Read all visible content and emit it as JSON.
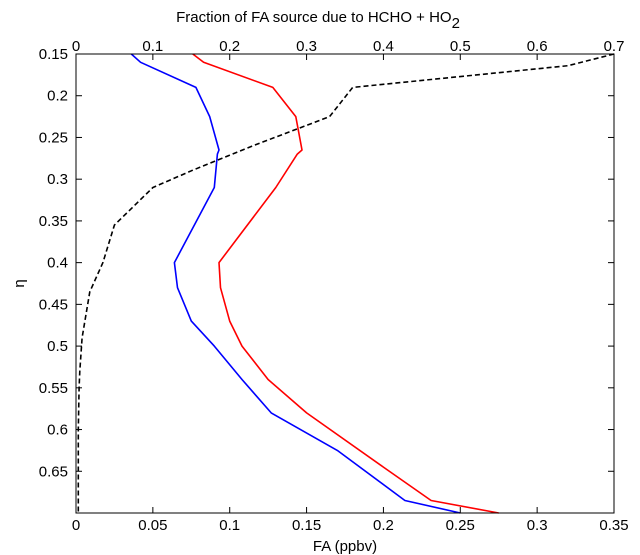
{
  "chart_data": {
    "type": "line",
    "top_axis_label": "Fraction of FA source due to HCHO + HO",
    "top_axis_label_subscript": "2",
    "xlabel": "FA (ppbv)",
    "ylabel": "η",
    "y_reversed": true,
    "ylim": [
      0.15,
      0.7
    ],
    "y_ticks": [
      0.15,
      0.2,
      0.25,
      0.3,
      0.35,
      0.4,
      0.45,
      0.5,
      0.55,
      0.6,
      0.65
    ],
    "y_tick_labels": [
      "0.15",
      "0.2",
      "0.25",
      "0.3",
      "0.35",
      "0.4",
      "0.45",
      "0.5",
      "0.55",
      "0.6",
      "0.65"
    ],
    "xlim_bottom": [
      0,
      0.35
    ],
    "x_ticks_bottom": [
      0,
      0.05,
      0.1,
      0.15,
      0.2,
      0.25,
      0.3,
      0.35
    ],
    "x_tick_labels_bottom": [
      "0",
      "0.05",
      "0.1",
      "0.15",
      "0.2",
      "0.25",
      "0.3",
      "0.35"
    ],
    "xlim_top": [
      0,
      0.7
    ],
    "x_ticks_top": [
      0,
      0.1,
      0.2,
      0.3,
      0.4,
      0.5,
      0.6,
      0.7
    ],
    "x_tick_labels_top": [
      "0",
      "0.1",
      "0.2",
      "0.3",
      "0.4",
      "0.5",
      "0.6",
      "0.7"
    ],
    "grid": false,
    "series": [
      {
        "axis": "bottom",
        "color": "#0000ff",
        "style": "solid",
        "x": [
          0.036,
          0.042,
          0.078,
          0.087,
          0.093,
          0.092,
          0.09,
          0.064,
          0.066,
          0.075,
          0.09,
          0.108,
          0.127,
          0.17,
          0.214,
          0.25
        ],
        "y": [
          0.15,
          0.16,
          0.19,
          0.225,
          0.265,
          0.27,
          0.31,
          0.4,
          0.43,
          0.47,
          0.5,
          0.54,
          0.58,
          0.625,
          0.685,
          0.7
        ]
      },
      {
        "axis": "bottom",
        "color": "#ff0000",
        "style": "solid",
        "x": [
          0.076,
          0.083,
          0.128,
          0.143,
          0.147,
          0.144,
          0.13,
          0.093,
          0.094,
          0.1,
          0.108,
          0.125,
          0.15,
          0.2,
          0.231,
          0.275
        ],
        "y": [
          0.15,
          0.16,
          0.19,
          0.225,
          0.265,
          0.27,
          0.31,
          0.4,
          0.43,
          0.47,
          0.5,
          0.54,
          0.58,
          0.645,
          0.685,
          0.7
        ]
      },
      {
        "axis": "top",
        "color": "#000000",
        "style": "dashed",
        "x": [
          0.7,
          0.64,
          0.36,
          0.33,
          0.23,
          0.15,
          0.1,
          0.05,
          0.035,
          0.018,
          0.008,
          0.005,
          0.004,
          0.003,
          0.003,
          0.003
        ],
        "y": [
          0.15,
          0.164,
          0.19,
          0.225,
          0.26,
          0.29,
          0.31,
          0.355,
          0.4,
          0.435,
          0.49,
          0.53,
          0.55,
          0.6,
          0.65,
          0.7
        ]
      }
    ]
  }
}
